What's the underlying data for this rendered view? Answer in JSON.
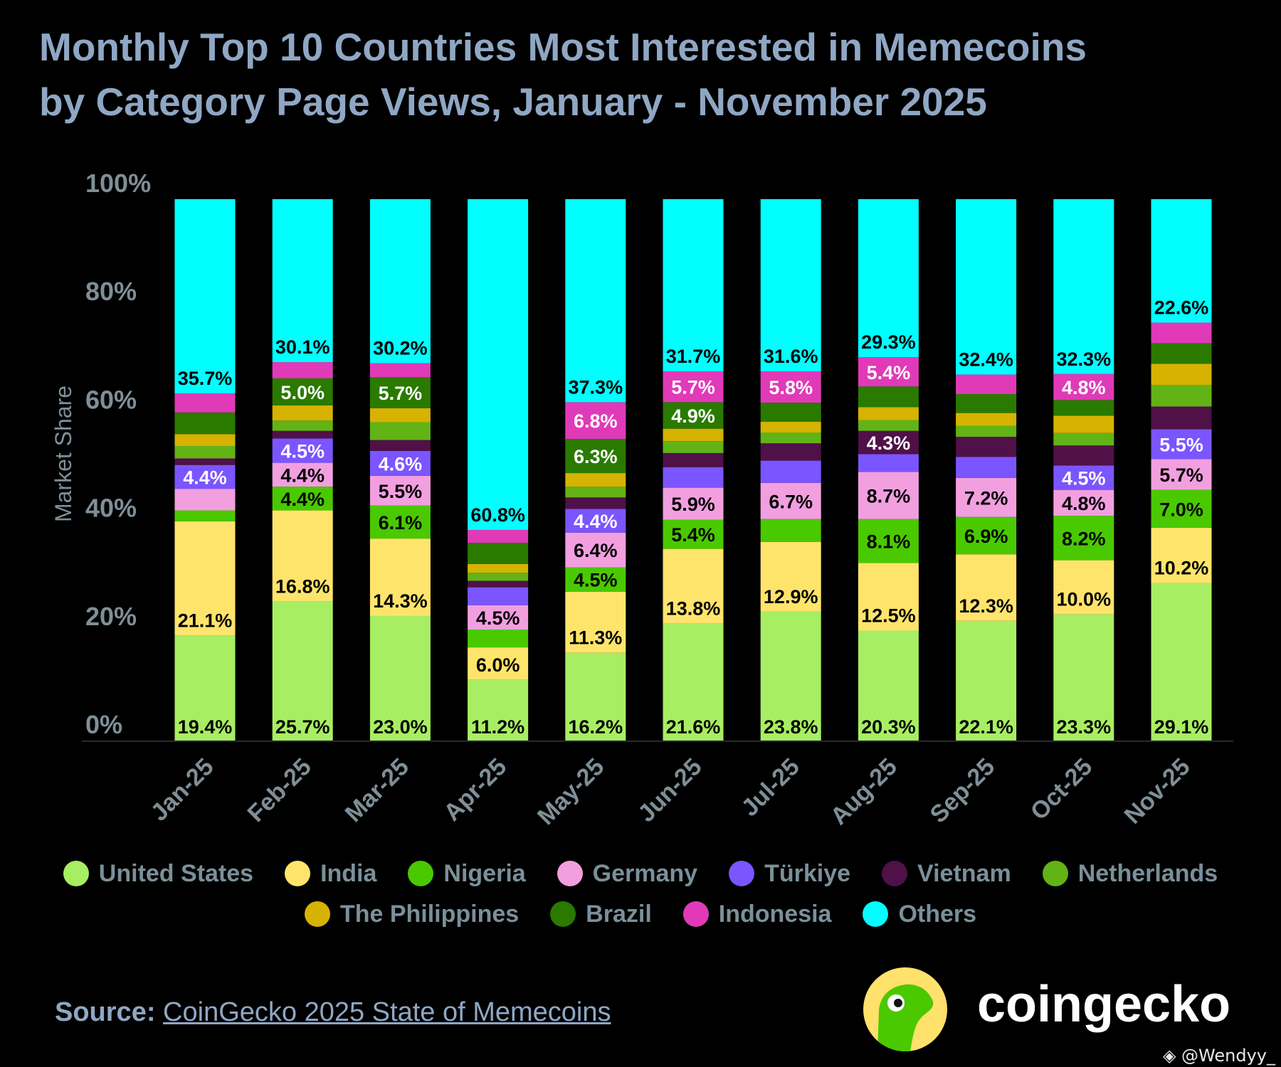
{
  "title": {
    "line1": "Monthly Top 10 Countries Most Interested in Memecoins",
    "line2": "by Category Page Views, January - November 2025"
  },
  "chart_data": {
    "type": "bar",
    "stacked": true,
    "ylabel": "Market Share",
    "xlabel": "",
    "ylim": [
      0,
      100
    ],
    "yticks": [
      "0%",
      "20%",
      "40%",
      "60%",
      "80%",
      "100%"
    ],
    "ytick_values": [
      0,
      20,
      40,
      60,
      80,
      100
    ],
    "grid": false,
    "legend_position": "bottom",
    "categories": [
      "Jan-25",
      "Feb-25",
      "Mar-25",
      "Apr-25",
      "May-25",
      "Jun-25",
      "Jul-25",
      "Aug-25",
      "Sep-25",
      "Oct-25",
      "Nov-25"
    ],
    "series": [
      {
        "name": "United States",
        "color": "#a8ee62",
        "label_color": "#000000",
        "values": [
          19.4,
          25.7,
          23.0,
          11.2,
          16.2,
          21.6,
          23.8,
          20.3,
          22.1,
          23.3,
          29.1
        ],
        "labeled": [
          1,
          1,
          1,
          1,
          1,
          1,
          1,
          1,
          1,
          1,
          1
        ]
      },
      {
        "name": "India",
        "color": "#ffe46c",
        "label_color": "#000000",
        "values": [
          21.1,
          16.8,
          14.3,
          6.0,
          11.3,
          13.8,
          12.9,
          12.5,
          12.3,
          10.0,
          10.2
        ],
        "labeled": [
          1,
          1,
          1,
          1,
          1,
          1,
          1,
          1,
          1,
          1,
          1
        ]
      },
      {
        "name": "Nigeria",
        "color": "#4ac900",
        "label_color": "#000000",
        "values": [
          2.0,
          4.4,
          6.1,
          3.3,
          4.5,
          5.4,
          4.2,
          8.1,
          6.9,
          8.2,
          7.0
        ],
        "labeled": [
          0,
          1,
          1,
          0,
          1,
          1,
          0,
          1,
          1,
          1,
          1
        ]
      },
      {
        "name": "Germany",
        "color": "#f29fe0",
        "label_color": "#000000",
        "values": [
          4.0,
          4.4,
          5.5,
          4.5,
          6.4,
          5.9,
          6.7,
          8.7,
          7.2,
          4.8,
          5.7
        ],
        "labeled": [
          0,
          1,
          1,
          1,
          1,
          1,
          1,
          1,
          1,
          1,
          1
        ]
      },
      {
        "name": "Türkiye",
        "color": "#7b55ff",
        "label_color": "#ffffff",
        "values": [
          4.4,
          4.5,
          4.6,
          3.3,
          4.4,
          3.8,
          4.1,
          3.3,
          3.9,
          4.5,
          5.5
        ],
        "labeled": [
          1,
          1,
          1,
          0,
          1,
          0,
          0,
          0,
          0,
          1,
          1
        ]
      },
      {
        "name": "Vietnam",
        "color": "#501048",
        "label_color": "#ffffff",
        "values": [
          1.2,
          1.4,
          2.0,
          1.2,
          2.1,
          2.6,
          3.2,
          4.3,
          3.7,
          3.7,
          4.2
        ],
        "labeled": [
          0,
          0,
          0,
          0,
          0,
          0,
          0,
          1,
          0,
          0,
          0
        ]
      },
      {
        "name": "Netherlands",
        "color": "#62b316",
        "label_color": "#000000",
        "values": [
          2.3,
          1.9,
          3.3,
          1.5,
          2.0,
          2.2,
          2.0,
          2.0,
          2.0,
          2.3,
          4.0
        ],
        "labeled": [
          0,
          0,
          0,
          0,
          0,
          0,
          0,
          0,
          0,
          0,
          0
        ]
      },
      {
        "name": "The Philippines",
        "color": "#d6b300",
        "label_color": "#000000",
        "values": [
          2.2,
          2.8,
          2.6,
          1.6,
          2.5,
          2.3,
          2.0,
          2.4,
          2.4,
          3.2,
          3.9
        ],
        "labeled": [
          0,
          0,
          0,
          0,
          0,
          0,
          0,
          0,
          0,
          0,
          0
        ]
      },
      {
        "name": "Brazil",
        "color": "#2a7a00",
        "label_color": "#ffffff",
        "values": [
          4.0,
          5.0,
          5.7,
          3.9,
          6.3,
          4.9,
          3.5,
          3.8,
          3.5,
          2.9,
          3.8
        ],
        "labeled": [
          0,
          1,
          1,
          0,
          1,
          1,
          0,
          0,
          0,
          0,
          0
        ]
      },
      {
        "name": "Indonesia",
        "color": "#e03ab8",
        "label_color": "#ffffff",
        "values": [
          3.5,
          3.0,
          2.6,
          2.4,
          6.8,
          5.7,
          5.8,
          5.4,
          3.6,
          4.8,
          3.8
        ],
        "labeled": [
          0,
          0,
          0,
          0,
          1,
          1,
          1,
          1,
          0,
          1,
          0
        ]
      },
      {
        "name": "Others",
        "color": "#00ffff",
        "label_color": "#000000",
        "values": [
          35.7,
          30.1,
          30.2,
          60.8,
          37.3,
          31.7,
          31.6,
          29.3,
          32.4,
          32.3,
          22.6
        ],
        "labeled": [
          1,
          1,
          1,
          1,
          1,
          1,
          1,
          1,
          1,
          1,
          1
        ]
      }
    ]
  },
  "source": {
    "label": "Source:",
    "link_text": "CoinGecko 2025 State of Memecoins"
  },
  "logo": {
    "wordmark": "coingecko"
  },
  "watermark": {
    "text": "@Wendyy_"
  }
}
